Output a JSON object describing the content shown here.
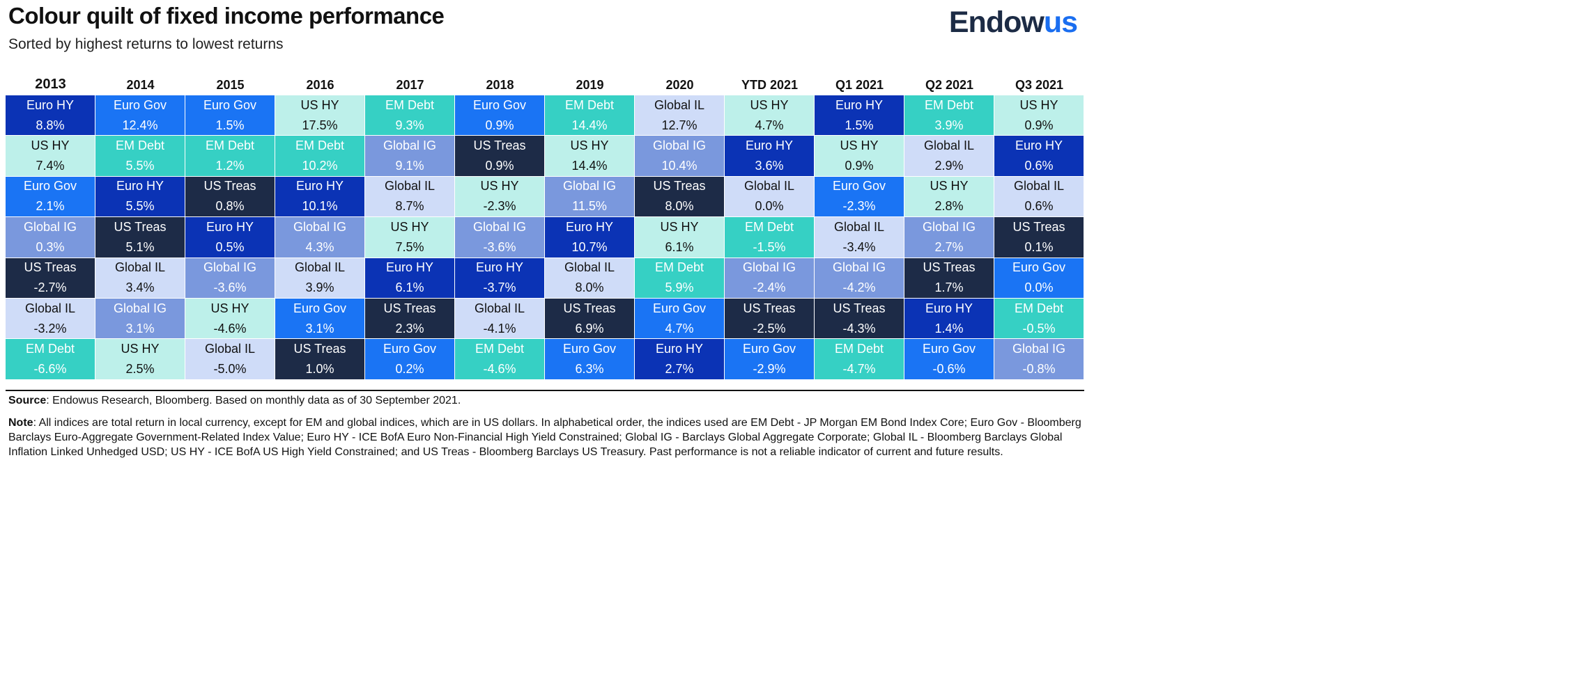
{
  "header": {
    "title": "Colour quilt of fixed income performance",
    "subtitle": "Sorted by highest returns to lowest returns",
    "logo_main": "Endow",
    "logo_accent": "us"
  },
  "colors": {
    "Euro HY": {
      "bg": "#0b33b5",
      "fg": "#ffffff"
    },
    "Euro Gov": {
      "bg": "#1a74f4",
      "fg": "#ffffff"
    },
    "EM Debt": {
      "bg": "#36d0c4",
      "fg": "#ffffff"
    },
    "US HY": {
      "bg": "#bdf0ea",
      "fg": "#111111"
    },
    "Global IG": {
      "bg": "#7a98dd",
      "fg": "#ffffff"
    },
    "US Treas": {
      "bg": "#1d2b47",
      "fg": "#ffffff"
    },
    "Global IL": {
      "bg": "#cfdcf8",
      "fg": "#111111"
    }
  },
  "chart_data": {
    "type": "table",
    "title": "Colour quilt of fixed income performance",
    "subtitle": "Sorted by highest returns to lowest returns",
    "columns": [
      "2013",
      "2014",
      "2015",
      "2016",
      "2017",
      "2018",
      "2019",
      "2020",
      "YTD 2021",
      "Q1 2021",
      "Q2 2021",
      "Q3 2021"
    ],
    "rows": [
      [
        [
          "Euro HY",
          "8.8%"
        ],
        [
          "Euro Gov",
          "12.4%"
        ],
        [
          "Euro Gov",
          "1.5%"
        ],
        [
          "US HY",
          "17.5%"
        ],
        [
          "EM Debt",
          "9.3%"
        ],
        [
          "Euro Gov",
          "0.9%"
        ],
        [
          "EM Debt",
          "14.4%"
        ],
        [
          "Global IL",
          "12.7%"
        ],
        [
          "US HY",
          "4.7%"
        ],
        [
          "Euro HY",
          "1.5%"
        ],
        [
          "EM Debt",
          "3.9%"
        ],
        [
          "US HY",
          "0.9%"
        ]
      ],
      [
        [
          "US HY",
          "7.4%"
        ],
        [
          "EM Debt",
          "5.5%"
        ],
        [
          "EM Debt",
          "1.2%"
        ],
        [
          "EM Debt",
          "10.2%"
        ],
        [
          "Global IG",
          "9.1%"
        ],
        [
          "US Treas",
          "0.9%"
        ],
        [
          "US HY",
          "14.4%"
        ],
        [
          "Global IG",
          "10.4%"
        ],
        [
          "Euro HY",
          "3.6%"
        ],
        [
          "US HY",
          "0.9%"
        ],
        [
          "Global IL",
          "2.9%"
        ],
        [
          "Euro HY",
          "0.6%"
        ]
      ],
      [
        [
          "Euro Gov",
          "2.1%"
        ],
        [
          "Euro HY",
          "5.5%"
        ],
        [
          "US Treas",
          "0.8%"
        ],
        [
          "Euro HY",
          "10.1%"
        ],
        [
          "Global IL",
          "8.7%"
        ],
        [
          "US HY",
          "-2.3%"
        ],
        [
          "Global IG",
          "11.5%"
        ],
        [
          "US Treas",
          "8.0%"
        ],
        [
          "Global IL",
          "0.0%"
        ],
        [
          "Euro Gov",
          "-2.3%"
        ],
        [
          "US HY",
          "2.8%"
        ],
        [
          "Global IL",
          "0.6%"
        ]
      ],
      [
        [
          "Global IG",
          "0.3%"
        ],
        [
          "US Treas",
          "5.1%"
        ],
        [
          "Euro HY",
          "0.5%"
        ],
        [
          "Global IG",
          "4.3%"
        ],
        [
          "US HY",
          "7.5%"
        ],
        [
          "Global IG",
          "-3.6%"
        ],
        [
          "Euro HY",
          "10.7%"
        ],
        [
          "US HY",
          "6.1%"
        ],
        [
          "EM Debt",
          "-1.5%"
        ],
        [
          "Global IL",
          "-3.4%"
        ],
        [
          "Global IG",
          "2.7%"
        ],
        [
          "US Treas",
          "0.1%"
        ]
      ],
      [
        [
          "US Treas",
          "-2.7%"
        ],
        [
          "Global IL",
          "3.4%"
        ],
        [
          "Global IG",
          "-3.6%"
        ],
        [
          "Global IL",
          "3.9%"
        ],
        [
          "Euro HY",
          "6.1%"
        ],
        [
          "Euro HY",
          "-3.7%"
        ],
        [
          "Global IL",
          "8.0%"
        ],
        [
          "EM Debt",
          "5.9%"
        ],
        [
          "Global IG",
          "-2.4%"
        ],
        [
          "Global IG",
          "-4.2%"
        ],
        [
          "US Treas",
          "1.7%"
        ],
        [
          "Euro Gov",
          "0.0%"
        ]
      ],
      [
        [
          "Global IL",
          "-3.2%"
        ],
        [
          "Global IG",
          "3.1%"
        ],
        [
          "US HY",
          "-4.6%"
        ],
        [
          "Euro Gov",
          "3.1%"
        ],
        [
          "US Treas",
          "2.3%"
        ],
        [
          "Global IL",
          "-4.1%"
        ],
        [
          "US Treas",
          "6.9%"
        ],
        [
          "Euro Gov",
          "4.7%"
        ],
        [
          "US Treas",
          "-2.5%"
        ],
        [
          "US Treas",
          "-4.3%"
        ],
        [
          "Euro HY",
          "1.4%"
        ],
        [
          "EM Debt",
          "-0.5%"
        ]
      ],
      [
        [
          "EM Debt",
          "-6.6%"
        ],
        [
          "US HY",
          "2.5%"
        ],
        [
          "Global IL",
          "-5.0%"
        ],
        [
          "US Treas",
          "1.0%"
        ],
        [
          "Euro Gov",
          "0.2%"
        ],
        [
          "EM Debt",
          "-4.6%"
        ],
        [
          "Euro Gov",
          "6.3%"
        ],
        [
          "Euro HY",
          "2.7%"
        ],
        [
          "Euro Gov",
          "-2.9%"
        ],
        [
          "EM Debt",
          "-4.7%"
        ],
        [
          "Euro Gov",
          "-0.6%"
        ],
        [
          "Global IG",
          "-0.8%"
        ]
      ]
    ]
  },
  "footer": {
    "source_label": "Source",
    "source_text": ": Endowus Research, Bloomberg. Based on monthly data as of 30 September 2021.",
    "note_label": "Note",
    "note_text": ": All indices are total return in local currency, except for EM and global indices, which are in US dollars. In alphabetical order, the indices used are EM Debt - JP Morgan EM Bond Index Core; Euro Gov - Bloomberg Barclays Euro-Aggregate Government-Related Index Value; Euro HY - ICE BofA Euro Non-Financial High Yield Constrained; Global IG - Barclays Global Aggregate Corporate; Global IL - Bloomberg Barclays Global Inflation Linked Unhedged USD; US HY - ICE BofA US High Yield Constrained; and US Treas - Bloomberg Barclays US Treasury. Past performance is not a reliable indicator of current and future results."
  }
}
